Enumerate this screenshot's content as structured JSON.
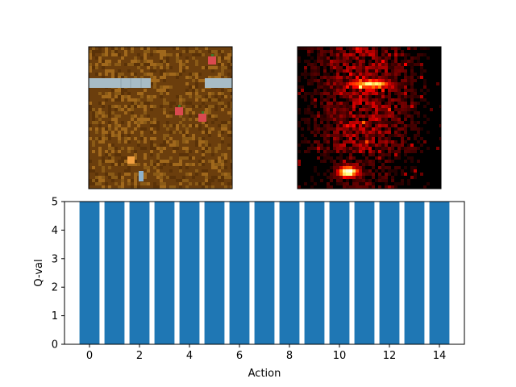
{
  "game_panel": {
    "background": "#6b3e0d",
    "wall_color": "#a8bcc6",
    "items": [
      {
        "name": "apple",
        "color": "#d94a4f"
      },
      {
        "name": "apple",
        "color": "#d94a4f"
      },
      {
        "name": "apple",
        "color": "#d94a4f"
      },
      {
        "name": "agent",
        "color": "#f2a040"
      },
      {
        "name": "agent-tail",
        "color": "#8fb2cc"
      }
    ]
  },
  "saliency_panel": {
    "colormap": "hot",
    "background": "#000000"
  },
  "chart_data": {
    "type": "bar",
    "categories": [
      0,
      1,
      2,
      3,
      4,
      5,
      6,
      7,
      8,
      9,
      10,
      11,
      12,
      13,
      14
    ],
    "values": [
      5,
      5,
      5,
      5,
      5,
      5,
      5,
      5,
      5,
      5,
      5,
      5,
      5,
      5,
      5
    ],
    "xlabel": "Action",
    "ylabel": "Q-val",
    "xlim": [
      -1,
      15
    ],
    "ylim": [
      0,
      5
    ],
    "xticks": [
      "0",
      "2",
      "4",
      "6",
      "8",
      "10",
      "12",
      "14"
    ],
    "yticks": [
      "0",
      "1",
      "2",
      "3",
      "4",
      "5"
    ],
    "bar_color": "#1f77b4",
    "grid": false
  }
}
